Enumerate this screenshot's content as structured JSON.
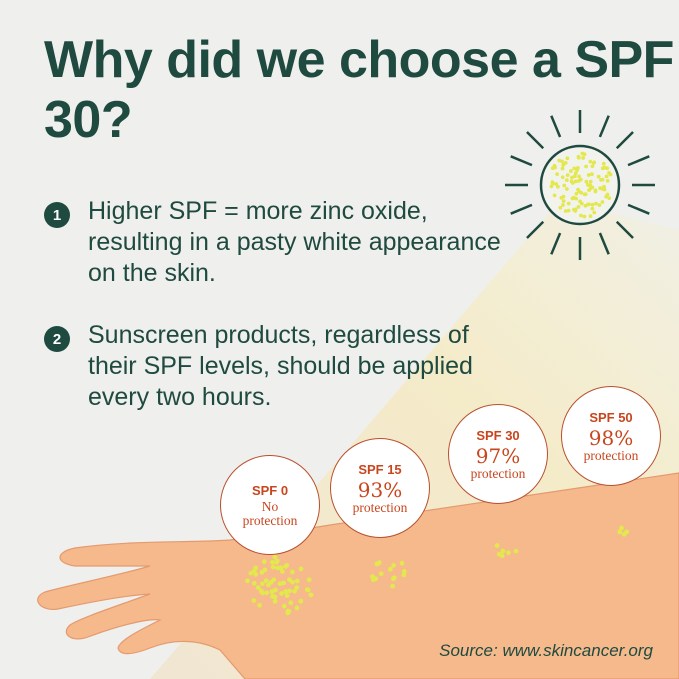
{
  "title": "Why did we choose a SPF 30?",
  "points": [
    {
      "number": "1",
      "text": "Higher SPF = more zinc oxide, resulting in a pasty white appearance on the skin."
    },
    {
      "number": "2",
      "text": "Sunscreen products, regardless of their SPF levels, should be applied every two hours."
    }
  ],
  "badges": [
    {
      "label": "SPF 0",
      "value": "",
      "desc": "No protection"
    },
    {
      "label": "SPF 15",
      "value": "93%",
      "desc": "protection"
    },
    {
      "label": "SPF 30",
      "value": "97%",
      "desc": "protection"
    },
    {
      "label": "SPF 50",
      "value": "98%",
      "desc": "protection"
    }
  ],
  "source": "Source: www.skincancer.org",
  "colors": {
    "primary": "#1f4a3f",
    "accent": "#c8461e",
    "skin": "#f5b98c",
    "sun_dots": "#e3e84e"
  }
}
